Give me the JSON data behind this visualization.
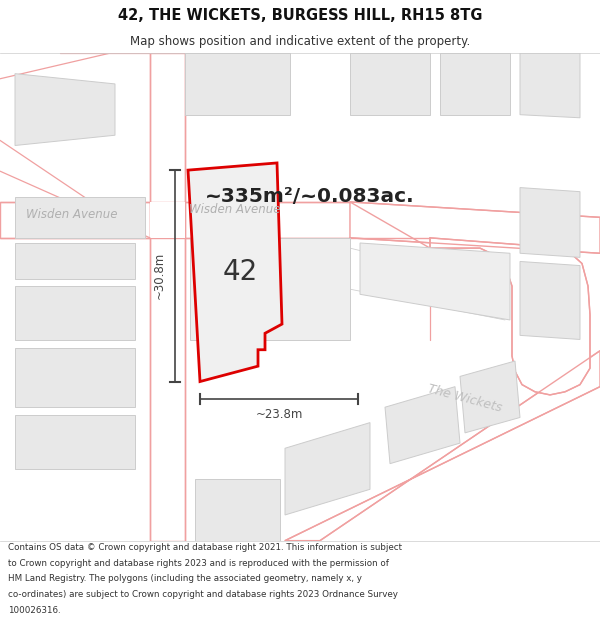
{
  "title": "42, THE WICKETS, BURGESS HILL, RH15 8TG",
  "subtitle": "Map shows position and indicative extent of the property.",
  "area_text": "~335m²/~0.083ac.",
  "label_42": "42",
  "dim_width": "~23.8m",
  "dim_height": "~30.8m",
  "street1": "Wisden Avenue",
  "street2": "Wisden Avenue",
  "street3": "The Wickets",
  "footer_lines": [
    "Contains OS data © Crown copyright and database right 2021. This information is subject",
    "to Crown copyright and database rights 2023 and is reproduced with the permission of",
    "HM Land Registry. The polygons (including the associated geometry, namely x, y",
    "co-ordinates) are subject to Crown copyright and database rights 2023 Ordnance Survey",
    "100026316."
  ],
  "bg_color": "#ffffff",
  "map_bg": "#ffffff",
  "plot_color": "#dd0000",
  "road_color": "#f0a0a0",
  "road_lw": 1.0,
  "building_fill": "#e8e8e8",
  "building_edge": "#cccccc",
  "dim_color": "#444444",
  "street_color": "#b0b0b0",
  "area_color": "#222222",
  "label_color": "#333333"
}
